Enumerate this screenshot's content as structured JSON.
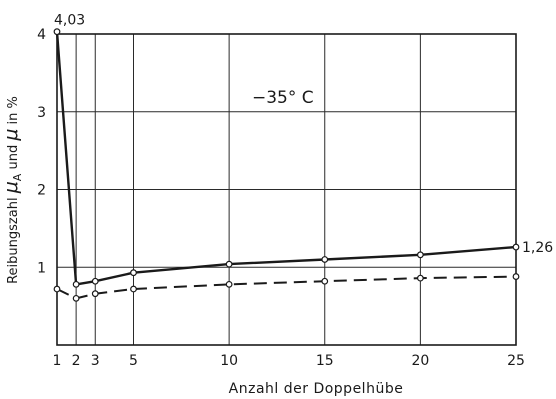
{
  "chart_data": {
    "type": "line",
    "title": "",
    "condition_label": "−35° C",
    "xlabel": "Anzahl der Doppelhübe",
    "ylabel": {
      "prefix": "Reibungszahl ",
      "mu_a_symbol": "μ",
      "mu_a_subscript": "A",
      "middle": " und ",
      "mu_symbol": "μ",
      "suffix": " in %"
    },
    "xlim": [
      1,
      25
    ],
    "ylim": [
      0,
      4
    ],
    "x_ticks": [
      1,
      2,
      3,
      5,
      10,
      15,
      20,
      25
    ],
    "y_ticks": [
      1,
      2,
      3,
      4
    ],
    "grid": true,
    "series": [
      {
        "style": "solid",
        "x": [
          1,
          2,
          3,
          5,
          10,
          15,
          20,
          25
        ],
        "y": [
          4.03,
          0.78,
          0.82,
          0.93,
          1.04,
          1.1,
          1.16,
          1.26
        ]
      },
      {
        "style": "dashed",
        "x": [
          1,
          2,
          3,
          5,
          10,
          15,
          20,
          25
        ],
        "y": [
          0.72,
          0.6,
          0.66,
          0.72,
          0.78,
          0.82,
          0.86,
          0.88
        ]
      }
    ],
    "annotations": [
      {
        "text": "4,03",
        "x": 1,
        "y": 4.03,
        "anchor": "above"
      },
      {
        "text": "1,26",
        "x": 25,
        "y": 1.26,
        "anchor": "right"
      }
    ],
    "colors": {
      "ink": "#1a1a1a",
      "grid": "#2a2a2a",
      "marker_fill": "#ffffff"
    }
  }
}
